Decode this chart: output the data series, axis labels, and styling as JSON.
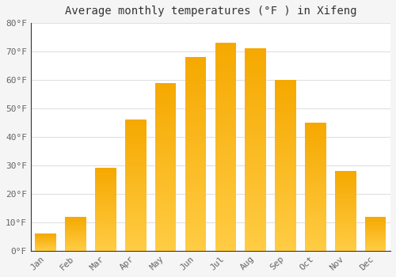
{
  "title": "Average monthly temperatures (°F ) in Xifeng",
  "months": [
    "Jan",
    "Feb",
    "Mar",
    "Apr",
    "May",
    "Jun",
    "Jul",
    "Aug",
    "Sep",
    "Oct",
    "Nov",
    "Dec"
  ],
  "values": [
    6,
    12,
    29,
    46,
    59,
    68,
    73,
    71,
    60,
    45,
    28,
    12
  ],
  "bar_color_light": "#FFCC44",
  "bar_color_dark": "#F5A800",
  "ylim": [
    0,
    80
  ],
  "yticks": [
    0,
    10,
    20,
    30,
    40,
    50,
    60,
    70,
    80
  ],
  "ytick_labels": [
    "0°F",
    "10°F",
    "20°F",
    "30°F",
    "40°F",
    "50°F",
    "60°F",
    "70°F",
    "80°F"
  ],
  "title_fontsize": 10,
  "tick_fontsize": 8,
  "plot_bg_color": "#ffffff",
  "fig_bg_color": "#f5f5f5",
  "grid_color": "#e0e0e0",
  "spine_color": "#333333"
}
